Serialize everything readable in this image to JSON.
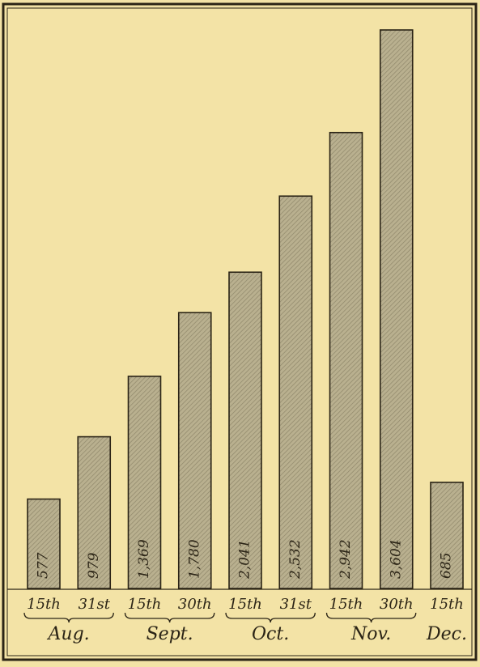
{
  "chart_data": {
    "type": "bar",
    "title": "",
    "xlabel": "",
    "ylabel": "",
    "ylim": [
      0,
      3604
    ],
    "grid": false,
    "categories": [
      "15th",
      "31st",
      "15th",
      "30th",
      "15th",
      "31st",
      "15th",
      "30th",
      "15th"
    ],
    "values": [
      577,
      979,
      1369,
      1780,
      2041,
      2532,
      2942,
      3604,
      685
    ],
    "value_labels": [
      "577",
      "979",
      "1,369",
      "1,780",
      "2,041",
      "2,532",
      "2,942",
      "3,604",
      "685"
    ],
    "groups": [
      {
        "label": "Aug.",
        "start": 0,
        "end": 1
      },
      {
        "label": "Sept.",
        "start": 2,
        "end": 3
      },
      {
        "label": "Oct.",
        "start": 4,
        "end": 5
      },
      {
        "label": "Nov.",
        "start": 6,
        "end": 7
      },
      {
        "label": "Dec.",
        "start": 8,
        "end": 8
      }
    ],
    "colors": {
      "background": "#f3e3a6",
      "bar_fill": "#b4ab8b",
      "bar_stroke": "#2b2416",
      "ink": "#2b2416"
    }
  }
}
